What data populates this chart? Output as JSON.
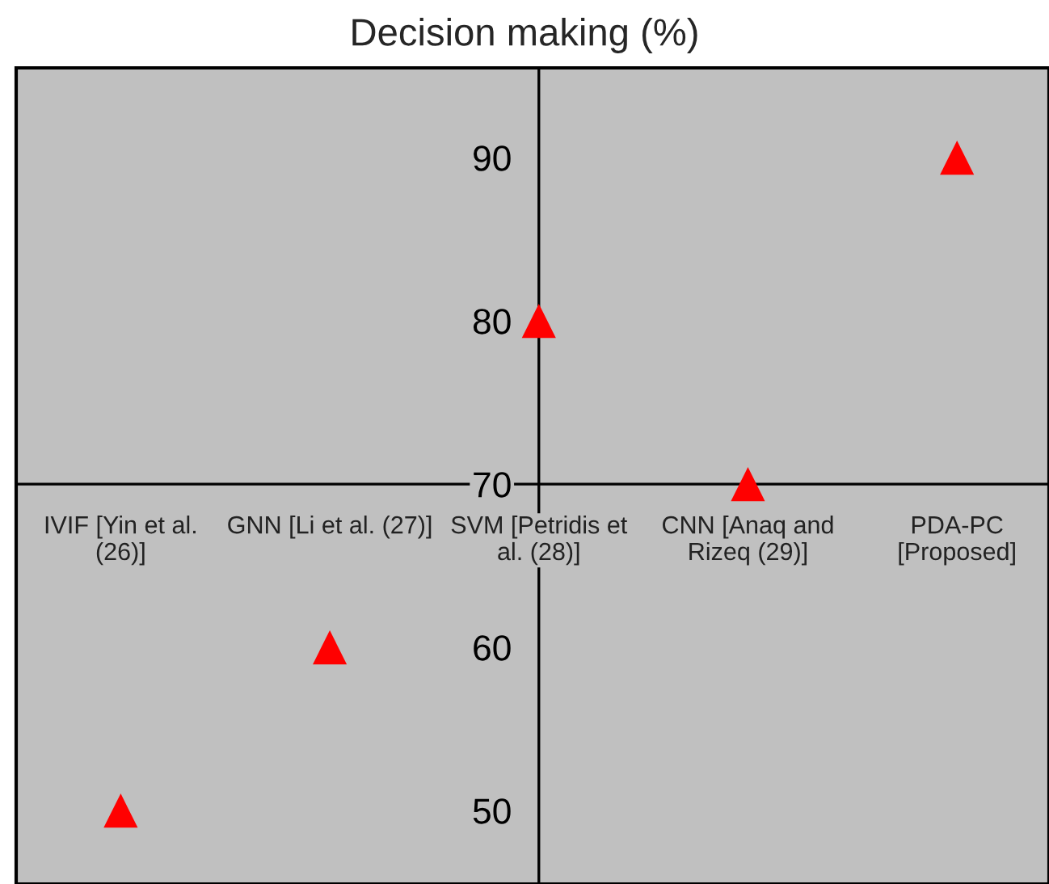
{
  "chart_data": {
    "type": "scatter",
    "title": "Decision making (%)",
    "categories": [
      "IVIF [Yin et al.\n(26)]",
      "GNN [Li et al. (27)]",
      "SVM [Petridis et\nal. (28)]",
      "CNN [Anaq and\nRizeq (29)]",
      "PDA-PC\n[Proposed]"
    ],
    "series": [
      {
        "color": "#ff0000",
        "values": [
          50,
          60,
          80,
          70,
          90
        ]
      }
    ],
    "ylim": [
      45.5,
      95.5
    ],
    "yticks": [
      50,
      60,
      70,
      80,
      90
    ],
    "marker": "triangle",
    "grid": false,
    "legend": false
  }
}
